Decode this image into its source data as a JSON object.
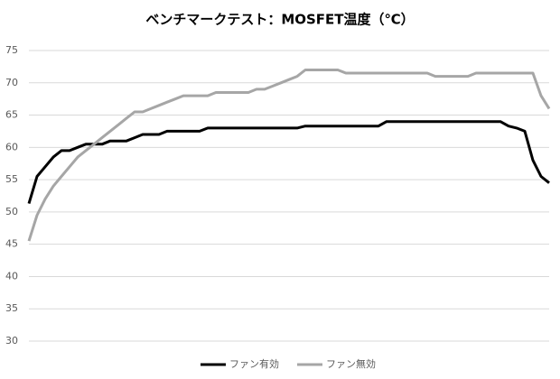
{
  "chart_data": {
    "type": "line",
    "title": "ベンチマークテスト：MOSFET温度（℃）",
    "ylim": [
      30,
      75
    ],
    "yticks": [
      30,
      35,
      40,
      45,
      50,
      55,
      60,
      65,
      70,
      75
    ],
    "grid": true,
    "legend": "bottom",
    "series": [
      {
        "name": "ファン有効",
        "color": "#000000",
        "values": [
          51.3,
          55.5,
          57,
          58.5,
          59.5,
          59.5,
          60,
          60.5,
          60.5,
          60.5,
          61,
          61,
          61,
          61.5,
          62,
          62,
          62,
          62.5,
          62.5,
          62.5,
          62.5,
          62.5,
          63,
          63,
          63,
          63,
          63,
          63,
          63,
          63,
          63,
          63,
          63,
          63,
          63.3,
          63.3,
          63.3,
          63.3,
          63.3,
          63.3,
          63.3,
          63.3,
          63.3,
          63.3,
          64,
          64,
          64,
          64,
          64,
          64,
          64,
          64,
          64,
          64,
          64,
          64,
          64,
          64,
          64,
          63.3,
          63,
          62.5,
          58,
          55.5,
          54.5
        ]
      },
      {
        "name": "ファン無効",
        "color": "#a6a6a6",
        "values": [
          45.5,
          49.5,
          52,
          54,
          55.5,
          57,
          58.5,
          59.5,
          60.5,
          61.5,
          62.5,
          63.5,
          64.5,
          65.5,
          65.5,
          66,
          66.5,
          67,
          67.5,
          68,
          68,
          68,
          68,
          68.5,
          68.5,
          68.5,
          68.5,
          68.5,
          69,
          69,
          69.5,
          70,
          70.5,
          71,
          72,
          72,
          72,
          72,
          72,
          71.5,
          71.5,
          71.5,
          71.5,
          71.5,
          71.5,
          71.5,
          71.5,
          71.5,
          71.5,
          71.5,
          71,
          71,
          71,
          71,
          71,
          71.5,
          71.5,
          71.5,
          71.5,
          71.5,
          71.5,
          71.5,
          71.5,
          68,
          66
        ]
      }
    ]
  }
}
